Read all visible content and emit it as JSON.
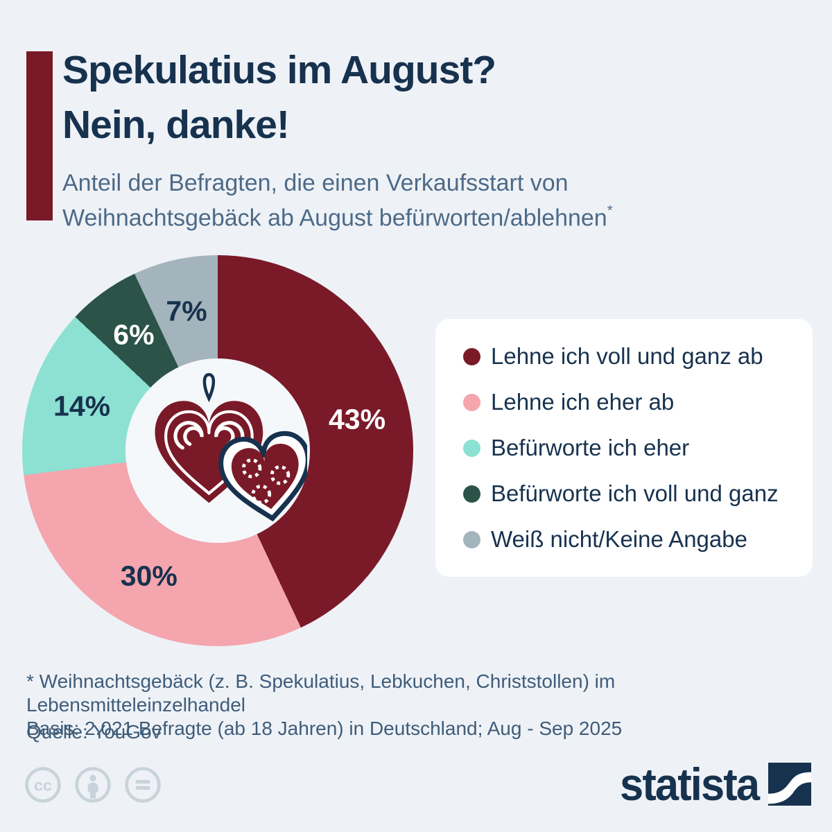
{
  "header": {
    "title_line1": "Spekulatius im August?",
    "title_line2": "Nein, danke!",
    "subtitle_line1": "Anteil der Befragten, die einen Verkaufsstart von",
    "subtitle_line2": "Weihnachtsgebäck ab August befürworten/ablehnen",
    "footnote_marker": "*"
  },
  "chart_data": {
    "type": "pie",
    "donut": true,
    "title": "Anteil der Befragten, die einen Verkaufsstart von Weihnachtsgebäck ab August befürworten/ablehnen*",
    "value_suffix": "%",
    "start_angle_deg": 0,
    "legend_position": "right",
    "center_icon": "gingerbread-hearts",
    "series": [
      {
        "label": "Lehne ich voll und ganz ab",
        "value": 43,
        "color": "#7a1a28",
        "label_color": "#ffffff"
      },
      {
        "label": "Lehne ich eher ab",
        "value": 30,
        "color": "#f4a5ad",
        "label_color": "#17324e"
      },
      {
        "label": "Befürworte ich eher",
        "value": 14,
        "color": "#8ce1d2",
        "label_color": "#17324e"
      },
      {
        "label": "Befürworte ich voll und ganz",
        "value": 6,
        "color": "#2b5348",
        "label_color": "#ffffff"
      },
      {
        "label": "Weiß nicht/Keine Angabe",
        "value": 7,
        "color": "#a4b4bc",
        "label_color": "#17324e"
      }
    ]
  },
  "footnotes": {
    "line1": "* Weihnachtsgebäck (z. B. Spekulatius, Lebkuchen, Christstollen) im Lebensmitteleinzelhandel",
    "line2": "Basis: 2.021 Befragte (ab 18 Jahren) in Deutschland; Aug - Sep 2025",
    "source": "Quelle: YouGov"
  },
  "branding": {
    "logo_text": "statista",
    "license_icons": [
      "cc",
      "by",
      "nd"
    ]
  },
  "colors": {
    "bg": "#eef2f7",
    "navy": "#17324e",
    "slate": "#4d6a87",
    "slate_dark": "#3f5c79",
    "accent": "#7a1a28",
    "hole": "#f5f8fb",
    "legend_bg": "#ffffff",
    "cc_gray": "#c8d3db"
  }
}
